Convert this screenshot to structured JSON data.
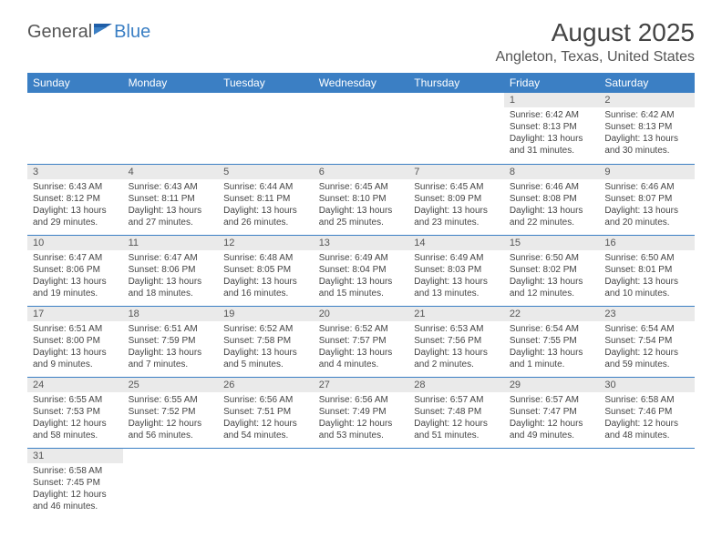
{
  "logo": {
    "part1": "General",
    "part2": "Blue"
  },
  "title": "August 2025",
  "location": "Angleton, Texas, United States",
  "colors": {
    "header_bg": "#3b7fc4",
    "header_text": "#ffffff",
    "daynum_bg": "#eaeaea",
    "border": "#3b7fc4",
    "text": "#444444",
    "background": "#ffffff"
  },
  "day_headers": [
    "Sunday",
    "Monday",
    "Tuesday",
    "Wednesday",
    "Thursday",
    "Friday",
    "Saturday"
  ],
  "weeks": [
    [
      null,
      null,
      null,
      null,
      null,
      {
        "n": "1",
        "sr": "Sunrise: 6:42 AM",
        "ss": "Sunset: 8:13 PM",
        "dl": "Daylight: 13 hours and 31 minutes."
      },
      {
        "n": "2",
        "sr": "Sunrise: 6:42 AM",
        "ss": "Sunset: 8:13 PM",
        "dl": "Daylight: 13 hours and 30 minutes."
      }
    ],
    [
      {
        "n": "3",
        "sr": "Sunrise: 6:43 AM",
        "ss": "Sunset: 8:12 PM",
        "dl": "Daylight: 13 hours and 29 minutes."
      },
      {
        "n": "4",
        "sr": "Sunrise: 6:43 AM",
        "ss": "Sunset: 8:11 PM",
        "dl": "Daylight: 13 hours and 27 minutes."
      },
      {
        "n": "5",
        "sr": "Sunrise: 6:44 AM",
        "ss": "Sunset: 8:11 PM",
        "dl": "Daylight: 13 hours and 26 minutes."
      },
      {
        "n": "6",
        "sr": "Sunrise: 6:45 AM",
        "ss": "Sunset: 8:10 PM",
        "dl": "Daylight: 13 hours and 25 minutes."
      },
      {
        "n": "7",
        "sr": "Sunrise: 6:45 AM",
        "ss": "Sunset: 8:09 PM",
        "dl": "Daylight: 13 hours and 23 minutes."
      },
      {
        "n": "8",
        "sr": "Sunrise: 6:46 AM",
        "ss": "Sunset: 8:08 PM",
        "dl": "Daylight: 13 hours and 22 minutes."
      },
      {
        "n": "9",
        "sr": "Sunrise: 6:46 AM",
        "ss": "Sunset: 8:07 PM",
        "dl": "Daylight: 13 hours and 20 minutes."
      }
    ],
    [
      {
        "n": "10",
        "sr": "Sunrise: 6:47 AM",
        "ss": "Sunset: 8:06 PM",
        "dl": "Daylight: 13 hours and 19 minutes."
      },
      {
        "n": "11",
        "sr": "Sunrise: 6:47 AM",
        "ss": "Sunset: 8:06 PM",
        "dl": "Daylight: 13 hours and 18 minutes."
      },
      {
        "n": "12",
        "sr": "Sunrise: 6:48 AM",
        "ss": "Sunset: 8:05 PM",
        "dl": "Daylight: 13 hours and 16 minutes."
      },
      {
        "n": "13",
        "sr": "Sunrise: 6:49 AM",
        "ss": "Sunset: 8:04 PM",
        "dl": "Daylight: 13 hours and 15 minutes."
      },
      {
        "n": "14",
        "sr": "Sunrise: 6:49 AM",
        "ss": "Sunset: 8:03 PM",
        "dl": "Daylight: 13 hours and 13 minutes."
      },
      {
        "n": "15",
        "sr": "Sunrise: 6:50 AM",
        "ss": "Sunset: 8:02 PM",
        "dl": "Daylight: 13 hours and 12 minutes."
      },
      {
        "n": "16",
        "sr": "Sunrise: 6:50 AM",
        "ss": "Sunset: 8:01 PM",
        "dl": "Daylight: 13 hours and 10 minutes."
      }
    ],
    [
      {
        "n": "17",
        "sr": "Sunrise: 6:51 AM",
        "ss": "Sunset: 8:00 PM",
        "dl": "Daylight: 13 hours and 9 minutes."
      },
      {
        "n": "18",
        "sr": "Sunrise: 6:51 AM",
        "ss": "Sunset: 7:59 PM",
        "dl": "Daylight: 13 hours and 7 minutes."
      },
      {
        "n": "19",
        "sr": "Sunrise: 6:52 AM",
        "ss": "Sunset: 7:58 PM",
        "dl": "Daylight: 13 hours and 5 minutes."
      },
      {
        "n": "20",
        "sr": "Sunrise: 6:52 AM",
        "ss": "Sunset: 7:57 PM",
        "dl": "Daylight: 13 hours and 4 minutes."
      },
      {
        "n": "21",
        "sr": "Sunrise: 6:53 AM",
        "ss": "Sunset: 7:56 PM",
        "dl": "Daylight: 13 hours and 2 minutes."
      },
      {
        "n": "22",
        "sr": "Sunrise: 6:54 AM",
        "ss": "Sunset: 7:55 PM",
        "dl": "Daylight: 13 hours and 1 minute."
      },
      {
        "n": "23",
        "sr": "Sunrise: 6:54 AM",
        "ss": "Sunset: 7:54 PM",
        "dl": "Daylight: 12 hours and 59 minutes."
      }
    ],
    [
      {
        "n": "24",
        "sr": "Sunrise: 6:55 AM",
        "ss": "Sunset: 7:53 PM",
        "dl": "Daylight: 12 hours and 58 minutes."
      },
      {
        "n": "25",
        "sr": "Sunrise: 6:55 AM",
        "ss": "Sunset: 7:52 PM",
        "dl": "Daylight: 12 hours and 56 minutes."
      },
      {
        "n": "26",
        "sr": "Sunrise: 6:56 AM",
        "ss": "Sunset: 7:51 PM",
        "dl": "Daylight: 12 hours and 54 minutes."
      },
      {
        "n": "27",
        "sr": "Sunrise: 6:56 AM",
        "ss": "Sunset: 7:49 PM",
        "dl": "Daylight: 12 hours and 53 minutes."
      },
      {
        "n": "28",
        "sr": "Sunrise: 6:57 AM",
        "ss": "Sunset: 7:48 PM",
        "dl": "Daylight: 12 hours and 51 minutes."
      },
      {
        "n": "29",
        "sr": "Sunrise: 6:57 AM",
        "ss": "Sunset: 7:47 PM",
        "dl": "Daylight: 12 hours and 49 minutes."
      },
      {
        "n": "30",
        "sr": "Sunrise: 6:58 AM",
        "ss": "Sunset: 7:46 PM",
        "dl": "Daylight: 12 hours and 48 minutes."
      }
    ],
    [
      {
        "n": "31",
        "sr": "Sunrise: 6:58 AM",
        "ss": "Sunset: 7:45 PM",
        "dl": "Daylight: 12 hours and 46 minutes."
      },
      null,
      null,
      null,
      null,
      null,
      null
    ]
  ]
}
